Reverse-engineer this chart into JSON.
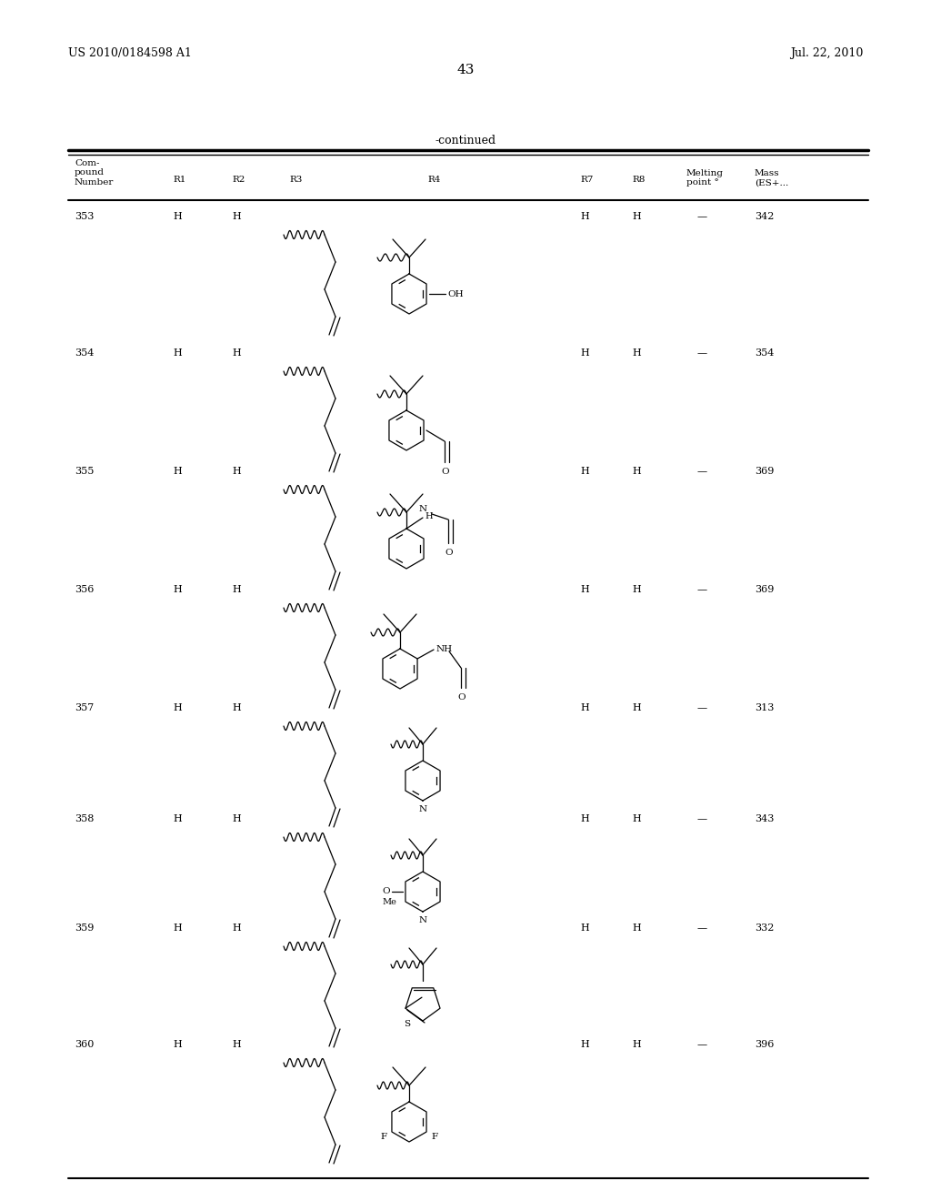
{
  "page_number": "43",
  "patent_number": "US 2010/0184598 A1",
  "patent_date": "Jul. 22, 2010",
  "continued_label": "-continued",
  "compounds": [
    {
      "number": "353",
      "r1": "H",
      "r2": "H",
      "r7": "H",
      "r8": "H",
      "melting": "—",
      "mass": "342"
    },
    {
      "number": "354",
      "r1": "H",
      "r2": "H",
      "r7": "H",
      "r8": "H",
      "melting": "—",
      "mass": "354"
    },
    {
      "number": "355",
      "r1": "H",
      "r2": "H",
      "r7": "H",
      "r8": "H",
      "melting": "—",
      "mass": "369"
    },
    {
      "number": "356",
      "r1": "H",
      "r2": "H",
      "r7": "H",
      "r8": "H",
      "melting": "—",
      "mass": "369"
    },
    {
      "number": "357",
      "r1": "H",
      "r2": "H",
      "r7": "H",
      "r8": "H",
      "melting": "—",
      "mass": "313"
    },
    {
      "number": "358",
      "r1": "H",
      "r2": "H",
      "r7": "H",
      "r8": "H",
      "melting": "—",
      "mass": "343"
    },
    {
      "number": "359",
      "r1": "H",
      "r2": "H",
      "r7": "H",
      "r8": "H",
      "melting": "—",
      "mass": "332"
    },
    {
      "number": "360",
      "r1": "H",
      "r2": "H",
      "r7": "H",
      "r8": "H",
      "melting": "—",
      "mass": "396"
    }
  ]
}
